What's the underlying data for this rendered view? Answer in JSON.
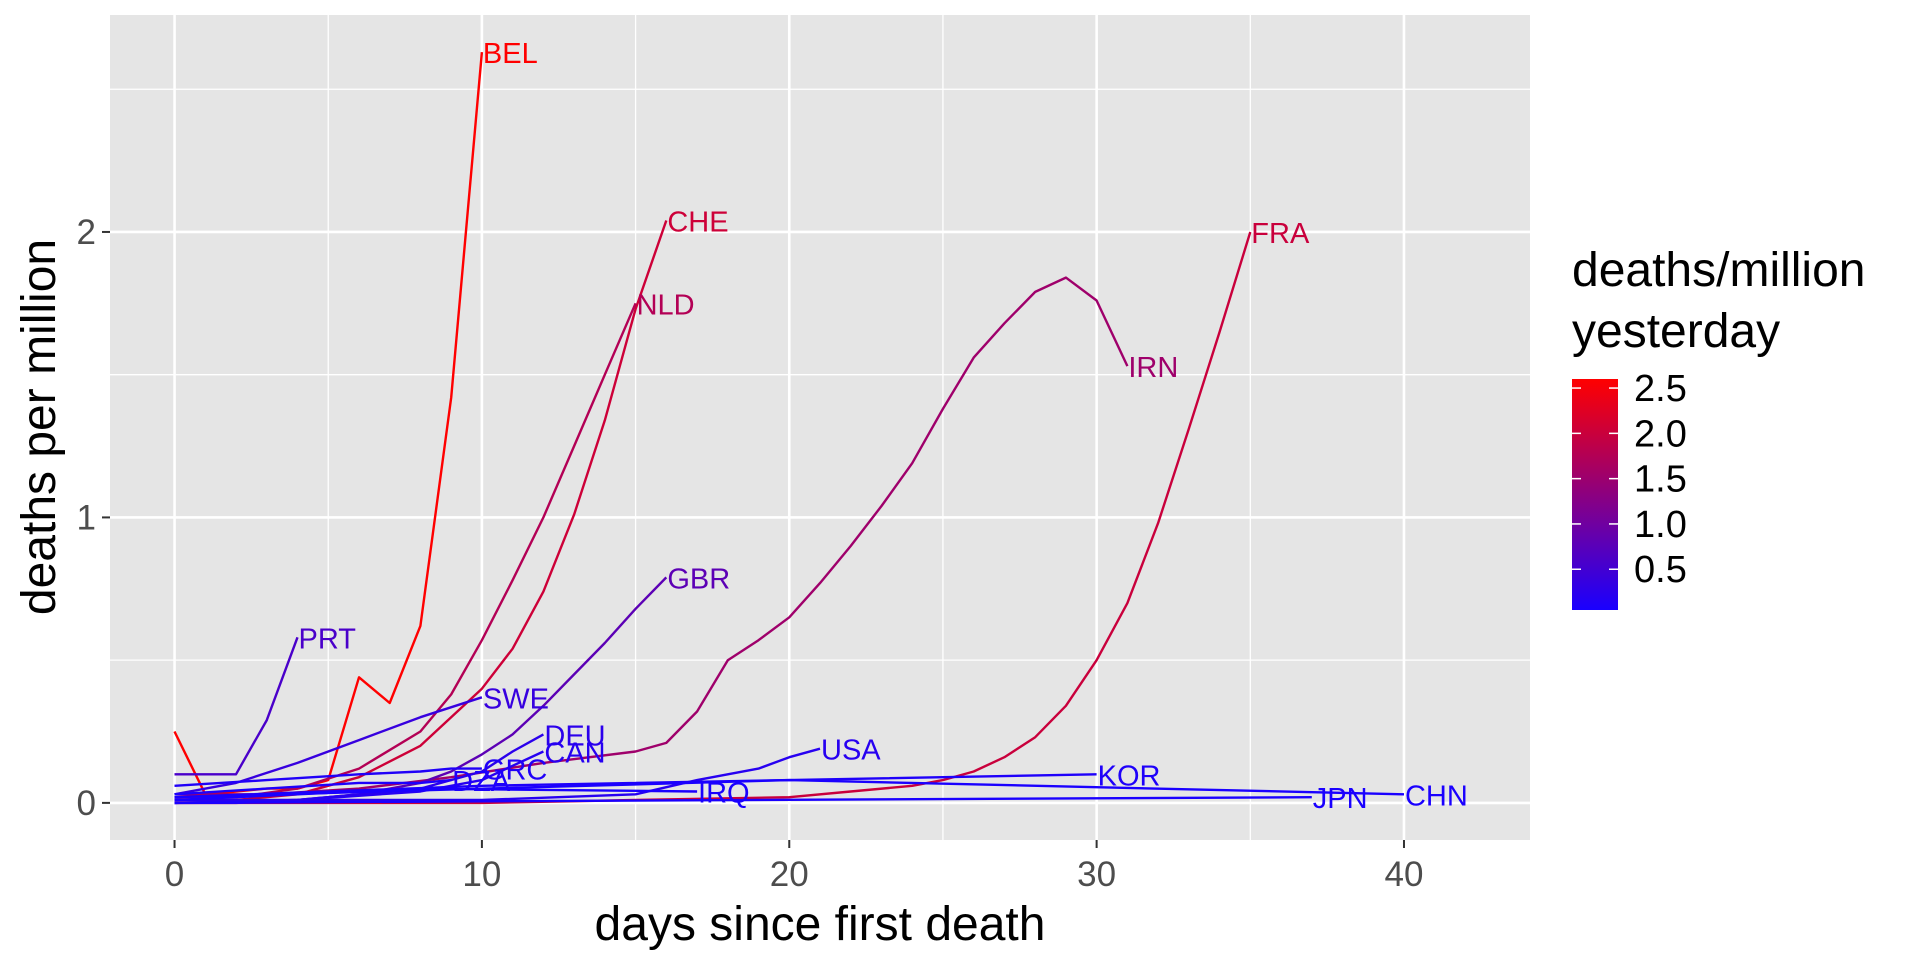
{
  "chart_data": {
    "type": "line",
    "xlabel": "days since first death",
    "ylabel": "deaths per million",
    "xlim": [
      -2.1,
      44.1
    ],
    "ylim": [
      -0.13,
      2.76
    ],
    "xticks": [
      0,
      10,
      20,
      30,
      40
    ],
    "yticks": [
      0,
      1,
      2
    ],
    "grid": true,
    "background": "#e5e5e5",
    "gridline_color": "#ffffff",
    "color_low": "#1a00ff",
    "color_high": "#ff0000",
    "legend": {
      "title_lines": [
        "deaths/million",
        "yesterday"
      ],
      "position": "right",
      "min": 0.05,
      "max": 2.6,
      "breaks": [
        0.5,
        1.0,
        1.5,
        2.0,
        2.5
      ],
      "labels": [
        "0.5",
        "1.0",
        "1.5",
        "2.0",
        "2.5"
      ]
    },
    "series": [
      {
        "name": "BEL",
        "last": 2.63,
        "x": [
          0,
          1,
          2,
          3,
          4,
          5,
          6,
          7,
          8,
          9,
          10
        ],
        "y": [
          0.25,
          0.03,
          0.04,
          0.05,
          0.05,
          0.08,
          0.44,
          0.35,
          0.62,
          1.42,
          2.63
        ]
      },
      {
        "name": "CHE",
        "last": 2.04,
        "x": [
          0,
          2,
          4,
          6,
          8,
          10,
          11,
          12,
          13,
          14,
          15,
          16
        ],
        "y": [
          0.01,
          0.01,
          0.03,
          0.09,
          0.2,
          0.4,
          0.54,
          0.74,
          1.01,
          1.34,
          1.73,
          2.04
        ]
      },
      {
        "name": "NLD",
        "last": 1.75,
        "x": [
          0,
          2,
          4,
          6,
          8,
          9,
          10,
          11,
          12,
          13,
          14,
          15
        ],
        "y": [
          0.02,
          0.02,
          0.05,
          0.12,
          0.25,
          0.38,
          0.57,
          0.78,
          1.0,
          1.25,
          1.5,
          1.75
        ]
      },
      {
        "name": "FRA",
        "last": 2.0,
        "x": [
          0,
          5,
          10,
          15,
          20,
          22,
          24,
          25,
          26,
          27,
          28,
          29,
          30,
          31,
          32,
          33,
          34,
          35
        ],
        "y": [
          0.0,
          0.0,
          0.0,
          0.01,
          0.02,
          0.04,
          0.06,
          0.08,
          0.11,
          0.16,
          0.23,
          0.34,
          0.5,
          0.7,
          0.98,
          1.31,
          1.65,
          2.0
        ]
      },
      {
        "name": "IRN",
        "last": 1.53,
        "x": [
          0,
          3,
          6,
          9,
          12,
          15,
          16,
          17,
          18,
          19,
          20,
          21,
          22,
          23,
          24,
          25,
          26,
          27,
          28,
          29,
          30,
          31
        ],
        "y": [
          0.03,
          0.03,
          0.05,
          0.09,
          0.14,
          0.18,
          0.21,
          0.32,
          0.5,
          0.57,
          0.65,
          0.77,
          0.9,
          1.04,
          1.19,
          1.38,
          1.56,
          1.68,
          1.79,
          1.84,
          1.76,
          1.53
        ]
      },
      {
        "name": "GBR",
        "last": 0.79,
        "x": [
          0,
          2,
          4,
          6,
          8,
          9,
          10,
          11,
          12,
          13,
          14,
          15,
          16
        ],
        "y": [
          0.0,
          0.0,
          0.01,
          0.03,
          0.07,
          0.11,
          0.17,
          0.24,
          0.34,
          0.45,
          0.56,
          0.68,
          0.79
        ]
      },
      {
        "name": "PRT",
        "last": 0.58,
        "x": [
          0,
          1,
          2,
          3,
          4
        ],
        "y": [
          0.1,
          0.1,
          0.1,
          0.29,
          0.58
        ]
      },
      {
        "name": "SWE",
        "last": 0.37,
        "x": [
          0,
          2,
          4,
          6,
          8,
          10
        ],
        "y": [
          0.03,
          0.07,
          0.14,
          0.22,
          0.3,
          0.37
        ]
      },
      {
        "name": "DEU",
        "last": 0.24,
        "x": [
          0,
          4,
          8,
          10,
          11,
          12
        ],
        "y": [
          0.0,
          0.01,
          0.05,
          0.11,
          0.18,
          0.24
        ]
      },
      {
        "name": "CAN",
        "last": 0.18,
        "x": [
          0,
          4,
          8,
          10,
          11,
          12
        ],
        "y": [
          0.0,
          0.01,
          0.04,
          0.08,
          0.13,
          0.18
        ]
      },
      {
        "name": "USA",
        "last": 0.19,
        "x": [
          0,
          5,
          10,
          15,
          17,
          19,
          20,
          21
        ],
        "y": [
          0.01,
          0.01,
          0.01,
          0.03,
          0.08,
          0.12,
          0.16,
          0.19
        ]
      },
      {
        "name": "GRC",
        "last": 0.12,
        "x": [
          0,
          3,
          6,
          8,
          9,
          10
        ],
        "y": [
          0.06,
          0.08,
          0.1,
          0.11,
          0.12,
          0.12
        ]
      },
      {
        "name": "DZA",
        "last": 0.08,
        "x": [
          0,
          3,
          6,
          8,
          9
        ],
        "y": [
          0.03,
          0.05,
          0.07,
          0.07,
          0.08
        ]
      },
      {
        "name": "KOR",
        "last": 0.1,
        "x": [
          0,
          10,
          20,
          30
        ],
        "y": [
          0.02,
          0.06,
          0.08,
          0.1
        ]
      },
      {
        "name": "IRQ",
        "last": 0.04,
        "x": [
          0,
          8,
          17
        ],
        "y": [
          0.01,
          0.05,
          0.04
        ]
      },
      {
        "name": "JPN",
        "last": 0.02,
        "x": [
          0,
          37
        ],
        "y": [
          0.0,
          0.02
        ]
      },
      {
        "name": "CHN",
        "last": 0.03,
        "x": [
          0,
          20,
          40
        ],
        "y": [
          0.02,
          0.08,
          0.03
        ]
      }
    ]
  }
}
